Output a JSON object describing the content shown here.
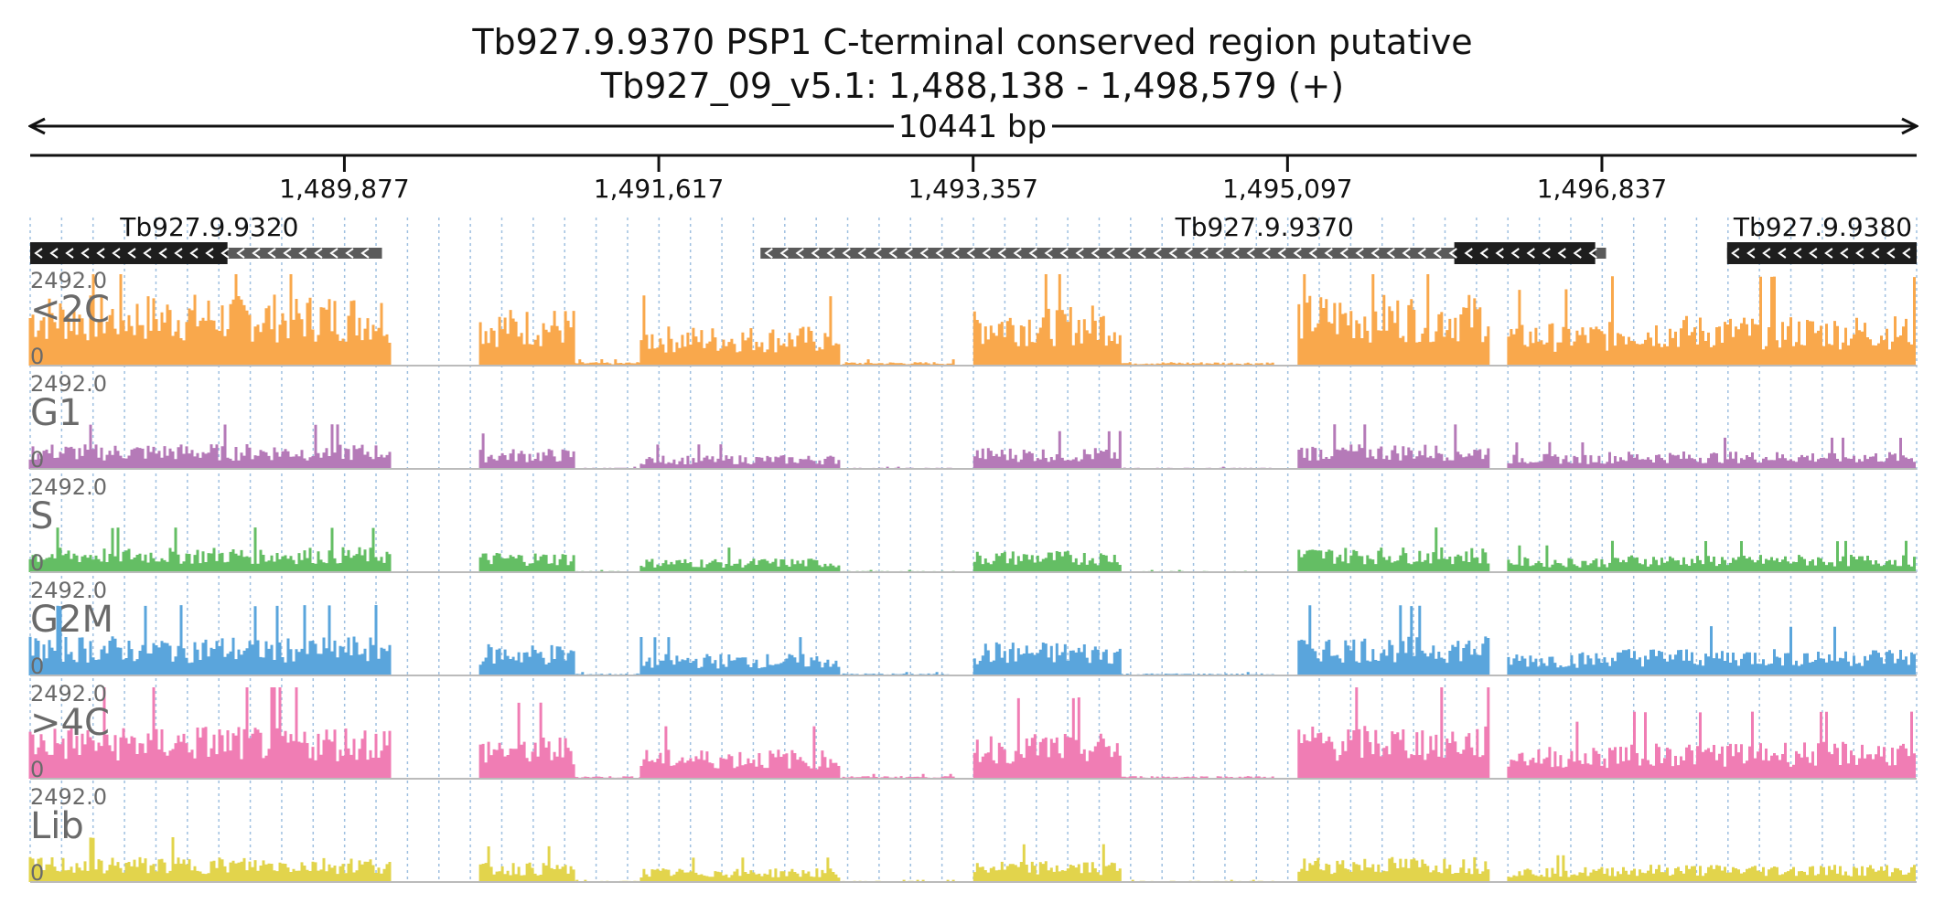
{
  "header": {
    "title": "Tb927.9.9370  PSP1 C-terminal conserved region  putative",
    "locus": "Tb927_09_v5.1: 1,488,138 - 1,498,579 (+)",
    "span_label": "10441 bp"
  },
  "region": {
    "start": 1488138,
    "end": 1498579
  },
  "ruler": {
    "ticks": [
      {
        "pos": 1489877,
        "label": "1,489,877"
      },
      {
        "pos": 1491617,
        "label": "1,491,617"
      },
      {
        "pos": 1493357,
        "label": "1,493,357"
      },
      {
        "pos": 1495097,
        "label": "1,495,097"
      },
      {
        "pos": 1496837,
        "label": "1,496,837"
      }
    ]
  },
  "genes": [
    {
      "name": "Tb927.9.9320",
      "strand": "-",
      "start": 1488138,
      "end": 1490085,
      "cds": [
        1488138,
        1489230
      ],
      "label_pos": 1489130
    },
    {
      "name": "Tb927.9.9370",
      "strand": "-",
      "start": 1492180,
      "end": 1496860,
      "cds": [
        1496020,
        1496800
      ],
      "label_pos": 1494970
    },
    {
      "name": "Tb927.9.9380",
      "strand": "-",
      "start": 1497530,
      "end": 1498579,
      "cds": [
        1497530,
        1498579
      ],
      "label_pos": 1498060
    }
  ],
  "tracks": [
    {
      "name": "<2C",
      "max": "2492.0",
      "min": "0",
      "color": "#f9a84c"
    },
    {
      "name": "G1",
      "max": "2492.0",
      "min": "0",
      "color": "#b57ab8"
    },
    {
      "name": "S",
      "max": "2492.0",
      "min": "0",
      "color": "#64be64"
    },
    {
      "name": "G2M",
      "max": "2492.0",
      "min": "0",
      "color": "#5aa5dc"
    },
    {
      "name": ">4C",
      "max": "2492.0",
      "min": "0",
      "color": "#f07db4"
    },
    {
      "name": "Lib",
      "max": "2492.0",
      "min": "0",
      "color": "#e2d44c"
    }
  ],
  "colors": {
    "gene_box": "#1e1e1e",
    "gene_utr": "#5a5a5a",
    "grid": "#9fc0e0",
    "separator": "#bbbbbb"
  }
}
